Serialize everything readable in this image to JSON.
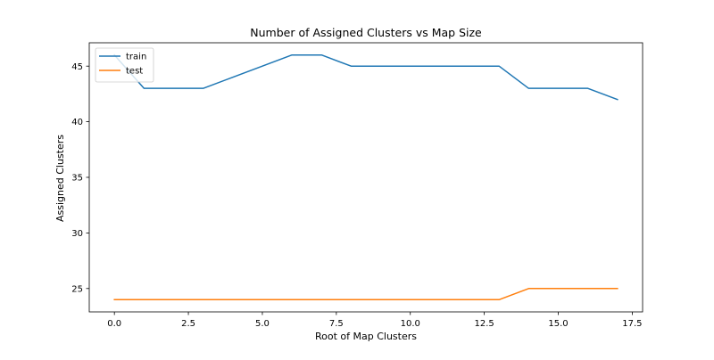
{
  "chart_data": {
    "type": "line",
    "title": "Number of Assigned Clusters vs Map Size",
    "xlabel": "Root of Map Clusters",
    "ylabel": "Assigned Clusters",
    "x": [
      0,
      1,
      2,
      3,
      4,
      5,
      6,
      7,
      8,
      9,
      10,
      11,
      12,
      13,
      14,
      15,
      16,
      17
    ],
    "xlim": [
      -0.85,
      17.85
    ],
    "ylim": [
      22.9,
      47.1
    ],
    "xticks": [
      0.0,
      2.5,
      5.0,
      7.5,
      10.0,
      12.5,
      15.0,
      17.5
    ],
    "xtick_labels": [
      "0.0",
      "2.5",
      "5.0",
      "7.5",
      "10.0",
      "12.5",
      "15.0",
      "17.5"
    ],
    "yticks": [
      25,
      30,
      35,
      40,
      45
    ],
    "ytick_labels": [
      "25",
      "30",
      "35",
      "40",
      "45"
    ],
    "grid": false,
    "legend_position": "top-left",
    "series": [
      {
        "name": "train",
        "color": "#1f77b4",
        "values": [
          46,
          43,
          43,
          43,
          44,
          45,
          46,
          46,
          45,
          45,
          45,
          45,
          45,
          45,
          43,
          43,
          43,
          42
        ]
      },
      {
        "name": "test",
        "color": "#ff7f0e",
        "values": [
          24,
          24,
          24,
          24,
          24,
          24,
          24,
          24,
          24,
          24,
          24,
          24,
          24,
          24,
          25,
          25,
          25,
          25
        ]
      }
    ]
  }
}
